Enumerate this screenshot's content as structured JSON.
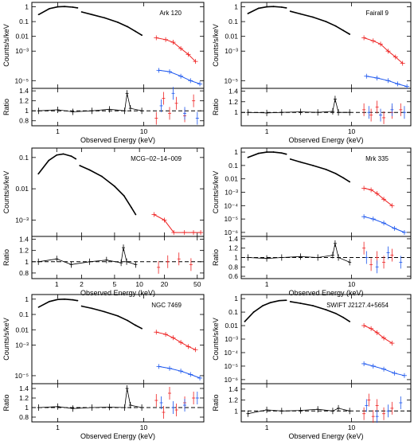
{
  "figure": {
    "ylabel_spectrum": "Counts/s/keV",
    "ylabel_ratio": "Ratio",
    "xlabel": "Observed Energy (keV)",
    "colors": {
      "data": "#000000",
      "bat": "#ee2222",
      "swift": "#1a55ee",
      "reference": "#000000"
    }
  },
  "chart_data": [
    {
      "type": "line",
      "title": "Ark 120",
      "xlabel": "Observed Energy (keV)",
      "ylabel": "Counts/s/keV",
      "x_scale": "log",
      "y_scale": "log",
      "xlim": [
        0.5,
        50
      ],
      "ylim": [
        3e-06,
        2
      ],
      "x_ticks": [
        1,
        10
      ],
      "x_tick_labels": [
        "1",
        "10"
      ],
      "y_ticks": [
        1e-05,
        0.001,
        0.01,
        0.1,
        1
      ],
      "y_tick_labels": [
        "10⁻⁵",
        "10⁻³",
        "0.01",
        "0.1",
        "1"
      ],
      "series": [
        {
          "x": [
            0.6,
            0.8,
            1.0,
            1.2,
            1.5,
            1.7
          ],
          "y": [
            0.3,
            0.75,
            1.0,
            1.05,
            0.95,
            0.85
          ]
        },
        {
          "x": [
            1.9,
            2.5,
            3.5,
            5.0,
            6.5,
            8.0,
            9.5
          ],
          "y": [
            0.45,
            0.3,
            0.18,
            0.09,
            0.045,
            0.022,
            0.012
          ]
        },
        {
          "x": [
            14,
            18,
            22,
            27,
            33,
            40
          ],
          "y": [
            0.008,
            0.006,
            0.004,
            0.0015,
            0.0006,
            0.0002
          ]
        },
        {
          "x": [
            15,
            20,
            27,
            35,
            45
          ],
          "y": [
            5e-05,
            4e-05,
            2e-05,
            1e-05,
            6e-06
          ]
        }
      ],
      "ratio": {
        "ylabel": "Ratio",
        "ylim": [
          0.7,
          1.45
        ],
        "y_ticks": [
          0.8,
          1,
          1.2,
          1.4
        ],
        "y_tick_labels": [
          "0.8",
          "1",
          "1.2",
          "1.4"
        ],
        "reference": 1,
        "series": [
          {
            "x": [
              0.6,
              1.0,
              1.5,
              2.5,
              4.0,
              6.0,
              6.4,
              7.0,
              9.5
            ],
            "y": [
              1.0,
              1.02,
              0.98,
              1.0,
              1.03,
              1.0,
              1.35,
              1.05,
              1.0
            ]
          },
          {
            "x": [
              14,
              17,
              20,
              24,
              30,
              38
            ],
            "y": [
              0.85,
              1.25,
              0.95,
              1.15,
              0.9,
              1.2
            ]
          },
          {
            "x": [
              16,
              22,
              30,
              42
            ],
            "y": [
              1.1,
              1.35,
              0.95,
              0.85
            ]
          }
        ]
      }
    },
    {
      "type": "line",
      "title": "Fairall 9",
      "xlabel": "Observed Energy (keV)",
      "ylabel": "Counts/s/keV",
      "x_scale": "log",
      "y_scale": "log",
      "xlim": [
        0.5,
        50
      ],
      "ylim": [
        3e-06,
        2
      ],
      "x_ticks": [
        1,
        10
      ],
      "x_tick_labels": [
        "1",
        "10"
      ],
      "y_ticks": [
        1e-05,
        0.001,
        0.01,
        0.1,
        1
      ],
      "y_tick_labels": [
        "10⁻⁵",
        "10⁻³",
        "0.01",
        "0.1",
        "1"
      ],
      "series": [
        {
          "x": [
            0.6,
            0.8,
            1.0,
            1.2,
            1.5,
            1.7
          ],
          "y": [
            0.35,
            0.8,
            1.0,
            1.05,
            0.95,
            0.85
          ]
        },
        {
          "x": [
            1.9,
            2.5,
            3.5,
            5.0,
            6.5,
            8.0,
            9.5
          ],
          "y": [
            0.5,
            0.33,
            0.2,
            0.1,
            0.05,
            0.025,
            0.014
          ]
        },
        {
          "x": [
            14,
            18,
            22,
            27,
            33,
            40
          ],
          "y": [
            0.008,
            0.005,
            0.003,
            0.001,
            0.0004,
            0.00015
          ]
        },
        {
          "x": [
            15,
            20,
            27,
            35,
            45
          ],
          "y": [
            2e-05,
            1.5e-05,
            1e-05,
            6e-06,
            4e-06
          ]
        }
      ],
      "ratio": {
        "ylabel": "Ratio",
        "ylim": [
          0.75,
          1.45
        ],
        "y_ticks": [
          1,
          1.2,
          1.4
        ],
        "y_tick_labels": [
          "1",
          "1.2",
          "1.4"
        ],
        "reference": 1,
        "series": [
          {
            "x": [
              0.6,
              1.0,
              1.5,
              2.5,
              4.0,
              6.0,
              6.4,
              7.0,
              9.5
            ],
            "y": [
              1.0,
              0.99,
              1.0,
              1.01,
              1.0,
              1.02,
              1.25,
              1.0,
              1.0
            ]
          },
          {
            "x": [
              14,
              17,
              20,
              24,
              30,
              38
            ],
            "y": [
              1.05,
              0.95,
              1.1,
              0.9,
              1.0,
              1.05
            ]
          },
          {
            "x": [
              16,
              22,
              30,
              42
            ],
            "y": [
              1.0,
              0.95,
              1.05,
              1.0
            ]
          }
        ]
      }
    },
    {
      "type": "line",
      "title": "MCG−02−14−009",
      "xlabel": "Observed Energy (keV)",
      "ylabel": "Counts/s/keV",
      "x_scale": "log",
      "y_scale": "log",
      "xlim": [
        0.5,
        60
      ],
      "ylim": [
        0.0003,
        0.2
      ],
      "x_ticks": [
        1,
        2,
        5,
        10,
        20,
        50
      ],
      "x_tick_labels": [
        "1",
        "2",
        "5",
        "10",
        "20",
        "50"
      ],
      "y_ticks": [
        0.001,
        0.01,
        0.1
      ],
      "y_tick_labels": [
        "10⁻³",
        "0.01",
        "0.1"
      ],
      "series": [
        {
          "x": [
            0.6,
            0.8,
            1.0,
            1.2,
            1.5,
            1.7
          ],
          "y": [
            0.03,
            0.08,
            0.12,
            0.13,
            0.11,
            0.09
          ]
        },
        {
          "x": [
            1.9,
            2.5,
            3.5,
            5.0,
            6.5,
            8.0,
            9.0
          ],
          "y": [
            0.055,
            0.04,
            0.025,
            0.012,
            0.006,
            0.0025,
            0.0015
          ]
        },
        {
          "x": [
            15,
            20,
            26,
            35,
            45,
            55
          ],
          "y": [
            0.0015,
            0.001,
            0.0004,
            0.0004,
            0.0004,
            0.0004
          ]
        }
      ],
      "ratio": {
        "ylabel": "Ratio",
        "ylim": [
          0.7,
          1.45
        ],
        "y_ticks": [
          0.8,
          1,
          1.2,
          1.4
        ],
        "y_tick_labels": [
          "0.8",
          "1",
          "1.2",
          "1.4"
        ],
        "reference": 1,
        "series": [
          {
            "x": [
              0.6,
              1.0,
              1.5,
              2.5,
              4.0,
              6.0,
              6.4,
              7.0,
              9.0
            ],
            "y": [
              1.0,
              1.05,
              0.95,
              1.0,
              1.03,
              0.98,
              1.25,
              1.0,
              0.95
            ]
          },
          {
            "x": [
              17,
              22,
              30,
              42
            ],
            "y": [
              0.9,
              1.0,
              1.05,
              0.95
            ]
          }
        ]
      }
    },
    {
      "type": "line",
      "title": "Mrk 335",
      "xlabel": "Observed Energy (keV)",
      "ylabel": "Counts/s/keV",
      "x_scale": "log",
      "y_scale": "log",
      "xlim": [
        0.5,
        50
      ],
      "ylim": [
        5e-07,
        2
      ],
      "x_ticks": [
        1,
        10
      ],
      "x_tick_labels": [
        "1",
        "10"
      ],
      "y_ticks": [
        1e-06,
        1e-05,
        0.0001,
        0.001,
        0.01,
        0.1,
        1
      ],
      "y_tick_labels": [
        "10⁻⁶",
        "10⁻⁵",
        "10⁻⁴",
        "10⁻³",
        "0.01",
        "0.1",
        "1"
      ],
      "series": [
        {
          "x": [
            0.6,
            0.8,
            1.0,
            1.2,
            1.5,
            1.7
          ],
          "y": [
            0.4,
            0.8,
            1.0,
            1.0,
            0.85,
            0.7
          ]
        },
        {
          "x": [
            1.9,
            2.5,
            3.5,
            5.0,
            6.5,
            8.0,
            9.5
          ],
          "y": [
            0.3,
            0.18,
            0.1,
            0.05,
            0.025,
            0.012,
            0.006
          ]
        },
        {
          "x": [
            14,
            17,
            20,
            24,
            30
          ],
          "y": [
            0.002,
            0.0015,
            0.0008,
            0.0003,
            0.0001
          ]
        },
        {
          "x": [
            14,
            18,
            24,
            32,
            42
          ],
          "y": [
            1.5e-05,
            1e-05,
            5e-06,
            2e-06,
            1e-06
          ]
        }
      ],
      "ratio": {
        "ylabel": "Ratio",
        "ylim": [
          0.55,
          1.45
        ],
        "y_ticks": [
          0.6,
          0.8,
          1,
          1.2,
          1.4
        ],
        "y_tick_labels": [
          "0.6",
          "0.8",
          "1",
          "1.2",
          "1.4"
        ],
        "reference": 1,
        "series": [
          {
            "x": [
              0.6,
              1.0,
              1.5,
              2.5,
              4.0,
              6.0,
              6.4,
              7.0,
              9.5
            ],
            "y": [
              1.0,
              0.98,
              1.0,
              1.02,
              1.0,
              1.05,
              1.3,
              1.0,
              0.9
            ]
          },
          {
            "x": [
              14,
              17,
              20,
              24,
              30
            ],
            "y": [
              1.2,
              0.85,
              1.0,
              0.9,
              1.05
            ]
          },
          {
            "x": [
              15,
              20,
              27,
              38
            ],
            "y": [
              1.0,
              0.8,
              1.1,
              0.9
            ]
          }
        ]
      }
    },
    {
      "type": "line",
      "title": "NGC 7469",
      "xlabel": "Observed Energy (keV)",
      "ylabel": "Counts/s/keV",
      "x_scale": "log",
      "y_scale": "log",
      "xlim": [
        0.5,
        50
      ],
      "ylim": [
        3e-06,
        2
      ],
      "x_ticks": [
        1,
        10
      ],
      "x_tick_labels": [
        "1",
        "10"
      ],
      "y_ticks": [
        1e-05,
        0.001,
        0.01,
        0.1,
        1
      ],
      "y_tick_labels": [
        "10⁻⁵",
        "10⁻³",
        "0.01",
        "0.1",
        "1"
      ],
      "series": [
        {
          "x": [
            0.6,
            0.8,
            1.0,
            1.2,
            1.5,
            1.7
          ],
          "y": [
            0.3,
            0.7,
            0.95,
            1.0,
            0.9,
            0.8
          ]
        },
        {
          "x": [
            1.9,
            2.5,
            3.5,
            5.0,
            6.5,
            8.0,
            9.5
          ],
          "y": [
            0.35,
            0.25,
            0.15,
            0.08,
            0.04,
            0.02,
            0.012
          ]
        },
        {
          "x": [
            14,
            18,
            22,
            27,
            33,
            40
          ],
          "y": [
            0.007,
            0.005,
            0.003,
            0.0015,
            0.0008,
            0.0005
          ]
        },
        {
          "x": [
            15,
            20,
            27,
            35,
            45
          ],
          "y": [
            4e-05,
            3e-05,
            2e-05,
            1.2e-05,
            7e-06
          ]
        }
      ],
      "ratio": {
        "ylabel": "Ratio",
        "ylim": [
          0.7,
          1.5
        ],
        "y_ticks": [
          0.8,
          1,
          1.2,
          1.4
        ],
        "y_tick_labels": [
          "0.8",
          "1",
          "1.2",
          "1.4"
        ],
        "reference": 1,
        "series": [
          {
            "x": [
              0.6,
              1.0,
              1.5,
              2.5,
              4.0,
              6.0,
              6.4,
              7.0,
              9.5
            ],
            "y": [
              1.0,
              1.02,
              0.98,
              1.0,
              1.01,
              1.0,
              1.4,
              1.05,
              1.0
            ]
          },
          {
            "x": [
              14,
              17,
              20,
              24,
              30,
              38
            ],
            "y": [
              1.15,
              0.9,
              1.3,
              0.95,
              1.1,
              1.2
            ]
          },
          {
            "x": [
              16,
              22,
              30,
              42
            ],
            "y": [
              1.1,
              1.0,
              1.05,
              1.2
            ]
          }
        ]
      }
    },
    {
      "type": "line",
      "title": "SWIFT J2127.4+5654",
      "xlabel": "Observed Energy (keV)",
      "ylabel": "Counts/s/keV",
      "x_scale": "log",
      "y_scale": "log",
      "xlim": [
        0.5,
        50
      ],
      "ylim": [
        5e-07,
        2
      ],
      "x_ticks": [
        1,
        10
      ],
      "x_tick_labels": [
        "1",
        "10"
      ],
      "y_ticks": [
        1e-06,
        1e-05,
        0.0001,
        0.001,
        0.01,
        0.1,
        1
      ],
      "y_tick_labels": [
        "10⁻⁶",
        "10⁻⁵",
        "10⁻⁴",
        "10⁻³",
        "0.01",
        "0.1",
        "1"
      ],
      "series": [
        {
          "x": [
            0.55,
            0.7,
            0.9,
            1.1,
            1.4,
            1.7
          ],
          "y": [
            0.02,
            0.1,
            0.3,
            0.5,
            0.7,
            0.75
          ]
        },
        {
          "x": [
            1.9,
            2.5,
            3.5,
            5.0,
            6.5,
            8.0,
            9.5
          ],
          "y": [
            0.6,
            0.45,
            0.3,
            0.15,
            0.08,
            0.04,
            0.02
          ]
        },
        {
          "x": [
            14,
            17,
            20,
            24,
            30
          ],
          "y": [
            0.01,
            0.006,
            0.003,
            0.0012,
            0.0005
          ]
        },
        {
          "x": [
            14,
            18,
            24,
            32,
            42
          ],
          "y": [
            1.5e-05,
            1e-05,
            6e-06,
            3e-06,
            2e-06
          ]
        }
      ],
      "ratio": {
        "ylabel": "Ratio",
        "ylim": [
          0.8,
          1.5
        ],
        "y_ticks": [
          1,
          1.2,
          1.4
        ],
        "y_tick_labels": [
          "1",
          "1.2",
          "1.4"
        ],
        "reference": 1,
        "series": [
          {
            "x": [
              0.6,
              1.0,
              1.5,
              2.5,
              4.0,
              6.0,
              7.0,
              9.5
            ],
            "y": [
              0.95,
              1.02,
              1.0,
              1.01,
              1.03,
              1.0,
              1.05,
              1.0
            ]
          },
          {
            "x": [
              14,
              16,
              18,
              20,
              24,
              30
            ],
            "y": [
              0.95,
              1.2,
              0.9,
              1.1,
              0.95,
              1.05
            ]
          },
          {
            "x": [
              15,
              20,
              27,
              38
            ],
            "y": [
              1.1,
              0.9,
              1.0,
              1.15
            ]
          }
        ]
      }
    }
  ]
}
